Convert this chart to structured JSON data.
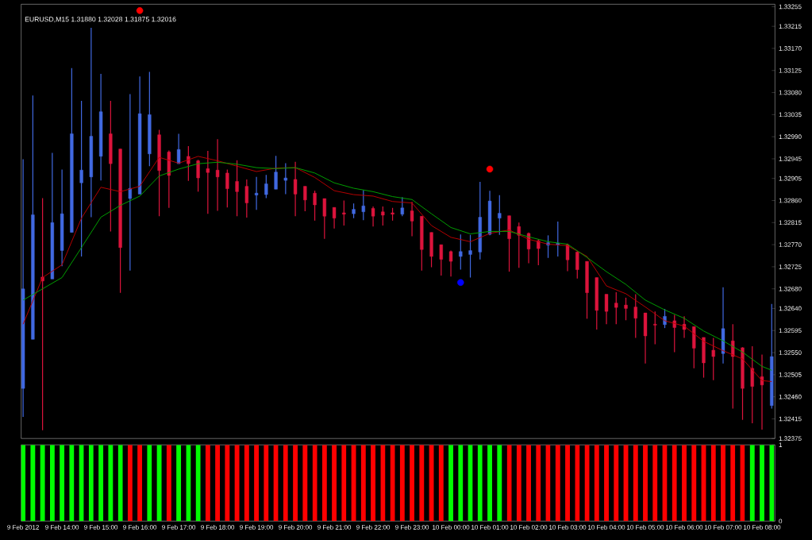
{
  "chart_data": [
    {
      "type": "candlestick",
      "title": "EURUSD,M15  1.31880 1.32028 1.31875 1.32016",
      "tick_labels": "y",
      "xlim": [
        "2012-02-09T12:57",
        "2012-02-10T08:20"
      ],
      "ylim": [
        1.32375,
        1.3326
      ],
      "yticks": [
        1.32375,
        1.32415,
        {
          "value": 1.3246,
          "label": "1.32460"
        },
        1.32505,
        {
          "value": 1.3255,
          "label": "1.32550"
        },
        1.32595,
        {
          "value": 1.3264,
          "label": "1.32640"
        },
        {
          "value": 1.3268,
          "label": "1.32680"
        },
        1.32725,
        {
          "value": 1.3277,
          "label": "1.32770"
        },
        1.32815,
        {
          "value": 1.3286,
          "label": "1.32860"
        },
        1.32905,
        1.32945,
        {
          "value": 1.3299,
          "label": "1.32990"
        },
        1.33035,
        {
          "value": 1.3308,
          "label": "1.33080"
        },
        1.33125,
        {
          "value": 1.3317,
          "label": "1.33170"
        },
        1.33215,
        1.33255
      ],
      "x": [
        "2012-02-09T13:00",
        "2012-02-09T13:15",
        "2012-02-09T13:30",
        "2012-02-09T13:45",
        "2012-02-09T14:00",
        "2012-02-09T14:15",
        "2012-02-09T14:30",
        "2012-02-09T14:45",
        "2012-02-09T15:00",
        "2012-02-09T15:15",
        "2012-02-09T15:30",
        "2012-02-09T15:45",
        "2012-02-09T16:00",
        "2012-02-09T16:15",
        "2012-02-09T16:30",
        "2012-02-09T16:45",
        "2012-02-09T17:00",
        "2012-02-09T17:15",
        "2012-02-09T17:30",
        "2012-02-09T17:45",
        "2012-02-09T18:00",
        "2012-02-09T18:15",
        "2012-02-09T18:30",
        "2012-02-09T18:45",
        "2012-02-09T19:00",
        "2012-02-09T19:15",
        "2012-02-09T19:30",
        "2012-02-09T19:45",
        "2012-02-09T20:00",
        "2012-02-09T20:15",
        "2012-02-09T20:30",
        "2012-02-09T20:45",
        "2012-02-09T21:00",
        "2012-02-09T21:15",
        "2012-02-09T21:30",
        "2012-02-09T21:45",
        "2012-02-09T22:00",
        "2012-02-09T22:15",
        "2012-02-09T22:30",
        "2012-02-09T22:45",
        "2012-02-09T23:00",
        "2012-02-09T23:15",
        "2012-02-09T23:30",
        "2012-02-09T23:45",
        "2012-02-10T00:00",
        "2012-02-10T00:15",
        "2012-02-10T00:30",
        "2012-02-10T00:45",
        "2012-02-10T01:00",
        "2012-02-10T01:15",
        "2012-02-10T01:30",
        "2012-02-10T01:45",
        "2012-02-10T02:00",
        "2012-02-10T02:15",
        "2012-02-10T02:30",
        "2012-02-10T02:45",
        "2012-02-10T03:00",
        "2012-02-10T03:15",
        "2012-02-10T03:30",
        "2012-02-10T03:45",
        "2012-02-10T04:00",
        "2012-02-10T04:15",
        "2012-02-10T04:30",
        "2012-02-10T04:45",
        "2012-02-10T05:00",
        "2012-02-10T05:15",
        "2012-02-10T05:30",
        "2012-02-10T05:45",
        "2012-02-10T06:00",
        "2012-02-10T06:15",
        "2012-02-10T06:30",
        "2012-02-10T06:45",
        "2012-02-10T07:00",
        "2012-02-10T07:15",
        "2012-02-10T07:30",
        "2012-02-10T07:45",
        "2012-02-10T08:00",
        "2012-02-10T08:15"
      ],
      "ohlc": [
        [
          1.32477,
          1.32944,
          1.32419,
          1.3268
        ],
        [
          1.32577,
          1.33074,
          1.32577,
          1.32831
        ],
        [
          1.32704,
          1.32865,
          1.32392,
          1.32696
        ],
        [
          1.327,
          1.32957,
          1.327,
          1.32815
        ],
        [
          1.32758,
          1.32923,
          1.32726,
          1.32833
        ],
        [
          1.32795,
          1.3313,
          1.32795,
          1.32996
        ],
        [
          1.32896,
          1.33063,
          1.32746,
          1.32922
        ],
        [
          1.32908,
          1.33212,
          1.32826,
          1.32991
        ],
        [
          1.3295,
          1.33118,
          1.32901,
          1.33041
        ],
        [
          1.32996,
          1.33063,
          1.32797,
          1.32935
        ],
        [
          1.32965,
          1.32965,
          1.32672,
          1.32764
        ],
        [
          1.32864,
          1.33077,
          1.32717,
          1.32885
        ],
        [
          1.32873,
          1.33113,
          1.32873,
          1.33037
        ],
        [
          1.32955,
          1.33122,
          1.3293,
          1.33035
        ],
        [
          1.32994,
          1.33004,
          1.32828,
          1.32921
        ],
        [
          1.32959,
          1.32962,
          1.32845,
          1.32911
        ],
        [
          1.32935,
          1.32996,
          1.32935,
          1.32964
        ],
        [
          1.3295,
          1.32971,
          1.329,
          1.32935
        ],
        [
          1.32941,
          1.32943,
          1.32878,
          1.32906
        ],
        [
          1.32925,
          1.32961,
          1.32833,
          1.32917
        ],
        [
          1.32922,
          1.32985,
          1.32839,
          1.32908
        ],
        [
          1.32916,
          1.32923,
          1.32846,
          1.32884
        ],
        [
          1.32899,
          1.32942,
          1.32828,
          1.32878
        ],
        [
          1.32889,
          1.32903,
          1.32825,
          1.32855
        ],
        [
          1.32871,
          1.32908,
          1.32841,
          1.32875
        ],
        [
          1.32872,
          1.32912,
          1.32865,
          1.32894
        ],
        [
          1.32883,
          1.32951,
          1.32883,
          1.32918
        ],
        [
          1.32901,
          1.32936,
          1.32873,
          1.32906
        ],
        [
          1.32903,
          1.32939,
          1.32828,
          1.32873
        ],
        [
          1.32889,
          1.32889,
          1.32838,
          1.32861
        ],
        [
          1.32875,
          1.3288,
          1.32819,
          1.32851
        ],
        [
          1.32864,
          1.32864,
          1.32782,
          1.32828
        ],
        [
          1.32846,
          1.32846,
          1.32803,
          1.32824
        ],
        [
          1.32835,
          1.3286,
          1.32809,
          1.32832
        ],
        [
          1.32833,
          1.32854,
          1.32824,
          1.32842
        ],
        [
          1.32837,
          1.32881,
          1.3282,
          1.32849
        ],
        [
          1.32844,
          1.32848,
          1.32807,
          1.32828
        ],
        [
          1.32837,
          1.32848,
          1.32809,
          1.3283
        ],
        [
          1.32835,
          1.32845,
          1.32819,
          1.32832
        ],
        [
          1.32832,
          1.32867,
          1.32828,
          1.32845
        ],
        [
          1.32839,
          1.32857,
          1.32787,
          1.32818
        ],
        [
          1.32828,
          1.32828,
          1.32717,
          1.3276
        ],
        [
          1.32795,
          1.32795,
          1.32724,
          1.32746
        ],
        [
          1.3277,
          1.3277,
          1.32707,
          1.3274
        ],
        [
          1.32756,
          1.32758,
          1.32705,
          1.32736
        ],
        [
          1.32746,
          1.32791,
          1.32719,
          1.32756
        ],
        [
          1.3275,
          1.3279,
          1.32703,
          1.32758
        ],
        [
          1.32755,
          1.32898,
          1.3274,
          1.32826
        ],
        [
          1.32791,
          1.3288,
          1.32789,
          1.32859
        ],
        [
          1.32824,
          1.32871,
          1.3279,
          1.32834
        ],
        [
          1.32829,
          1.32829,
          1.32715,
          1.32782
        ],
        [
          1.32807,
          1.32815,
          1.32723,
          1.32789
        ],
        [
          1.32793,
          1.32795,
          1.32732,
          1.32761
        ],
        [
          1.32778,
          1.32781,
          1.32728,
          1.32762
        ],
        [
          1.32769,
          1.32789,
          1.32743,
          1.32774
        ],
        [
          1.3277,
          1.32817,
          1.32746,
          1.32773
        ],
        [
          1.3277,
          1.32772,
          1.32716,
          1.32739
        ],
        [
          1.32755,
          1.32756,
          1.32701,
          1.32719
        ],
        [
          1.32736,
          1.32736,
          1.32619,
          1.32672
        ],
        [
          1.32703,
          1.32703,
          1.32597,
          1.32636
        ],
        [
          1.32669,
          1.32669,
          1.32608,
          1.32634
        ],
        [
          1.32651,
          1.32673,
          1.32608,
          1.32642
        ],
        [
          1.32647,
          1.32662,
          1.32616,
          1.3264
        ],
        [
          1.32643,
          1.32669,
          1.3258,
          1.3262
        ],
        [
          1.32631,
          1.32631,
          1.32528,
          1.32584
        ],
        [
          1.32608,
          1.32634,
          1.32567,
          1.32606
        ],
        [
          1.32607,
          1.32639,
          1.326,
          1.32624
        ],
        [
          1.32615,
          1.32627,
          1.32551,
          1.32601
        ],
        [
          1.32608,
          1.32624,
          1.3258,
          1.32597
        ],
        [
          1.32603,
          1.32603,
          1.32518,
          1.32559
        ],
        [
          1.32581,
          1.32581,
          1.32499,
          1.32529
        ],
        [
          1.32555,
          1.3258,
          1.32494,
          1.32542
        ],
        [
          1.32548,
          1.32683,
          1.32528,
          1.32599
        ],
        [
          1.32574,
          1.32608,
          1.32436,
          1.32542
        ],
        [
          1.3256,
          1.32561,
          1.32413,
          1.32477
        ],
        [
          1.32518,
          1.32563,
          1.32406,
          1.32481
        ],
        [
          1.32501,
          1.32546,
          1.32393,
          1.32484
        ],
        [
          1.32442,
          1.32649,
          1.32436,
          1.32542
        ]
      ],
      "colors": [
        "#4169e1",
        "#4169e1",
        "#dc143c",
        "#4169e1",
        "#4169e1",
        "#4169e1",
        "#4169e1",
        "#4169e1",
        "#4169e1",
        "#dc143c",
        "#dc143c",
        "#4169e1",
        "#4169e1",
        "#4169e1",
        "#dc143c",
        "#dc143c",
        "#4169e1",
        "#dc143c",
        "#dc143c",
        "#dc143c",
        "#dc143c",
        "#dc143c",
        "#dc143c",
        "#dc143c",
        "#4169e1",
        "#4169e1",
        "#4169e1",
        "#4169e1",
        "#dc143c",
        "#dc143c",
        "#dc143c",
        "#dc143c",
        "#dc143c",
        "#dc143c",
        "#4169e1",
        "#4169e1",
        "#dc143c",
        "#dc143c",
        "#dc143c",
        "#4169e1",
        "#dc143c",
        "#dc143c",
        "#dc143c",
        "#dc143c",
        "#dc143c",
        "#4169e1",
        "#4169e1",
        "#4169e1",
        "#4169e1",
        "#4169e1",
        "#dc143c",
        "#dc143c",
        "#dc143c",
        "#dc143c",
        "#4169e1",
        "#4169e1",
        "#dc143c",
        "#dc143c",
        "#dc143c",
        "#dc143c",
        "#dc143c",
        "#dc143c",
        "#dc143c",
        "#dc143c",
        "#dc143c",
        "#dc143c",
        "#4169e1",
        "#dc143c",
        "#dc143c",
        "#dc143c",
        "#dc143c",
        "#dc143c",
        "#4169e1",
        "#dc143c",
        "#dc143c",
        "#dc143c",
        "#dc143c",
        "#4169e1"
      ],
      "series": [
        {
          "type": "line",
          "color": "#c00000",
          "x": [
            "2012-02-09T13:00",
            "2012-02-09T13:30",
            "2012-02-09T14:00",
            "2012-02-09T14:30",
            "2012-02-09T15:00",
            "2012-02-09T15:30",
            "2012-02-09T16:00",
            "2012-02-09T16:30",
            "2012-02-09T17:00",
            "2012-02-09T17:30",
            "2012-02-09T18:00",
            "2012-02-09T18:30",
            "2012-02-09T19:00",
            "2012-02-09T19:30",
            "2012-02-09T20:00",
            "2012-02-09T20:30",
            "2012-02-09T21:00",
            "2012-02-09T21:30",
            "2012-02-09T22:00",
            "2012-02-09T22:30",
            "2012-02-09T23:00",
            "2012-02-09T23:30",
            "2012-02-10T00:00",
            "2012-02-10T00:30",
            "2012-02-10T01:00",
            "2012-02-10T01:30",
            "2012-02-10T02:00",
            "2012-02-10T02:30",
            "2012-02-10T03:00",
            "2012-02-10T03:30",
            "2012-02-10T04:00",
            "2012-02-10T04:30",
            "2012-02-10T05:00",
            "2012-02-10T05:30",
            "2012-02-10T06:00",
            "2012-02-10T06:30",
            "2012-02-10T07:00",
            "2012-02-10T07:30",
            "2012-02-10T08:00",
            "2012-02-10T08:15"
          ],
          "values": [
            1.32608,
            1.32703,
            1.32729,
            1.32824,
            1.32887,
            1.32878,
            1.32889,
            1.32948,
            1.32936,
            1.3295,
            1.32941,
            1.3293,
            1.32919,
            1.32926,
            1.32927,
            1.32907,
            1.3288,
            1.32872,
            1.32869,
            1.32858,
            1.32855,
            1.32809,
            1.32785,
            1.32776,
            1.32793,
            1.328,
            1.32781,
            1.32771,
            1.32768,
            1.32746,
            1.32686,
            1.3267,
            1.32643,
            1.32615,
            1.32604,
            1.32573,
            1.32554,
            1.32537,
            1.32493,
            1.32491
          ]
        },
        {
          "type": "line",
          "color": "#00a800",
          "x": [
            "2012-02-09T13:00",
            "2012-02-09T13:30",
            "2012-02-09T14:00",
            "2012-02-09T14:30",
            "2012-02-09T15:00",
            "2012-02-09T15:30",
            "2012-02-09T16:00",
            "2012-02-09T16:30",
            "2012-02-09T17:00",
            "2012-02-09T17:30",
            "2012-02-09T18:00",
            "2012-02-09T18:30",
            "2012-02-09T19:00",
            "2012-02-09T19:30",
            "2012-02-09T20:00",
            "2012-02-09T20:30",
            "2012-02-09T21:00",
            "2012-02-09T21:30",
            "2012-02-09T22:00",
            "2012-02-09T22:30",
            "2012-02-09T23:00",
            "2012-02-09T23:30",
            "2012-02-10T00:00",
            "2012-02-10T00:30",
            "2012-02-10T01:00",
            "2012-02-10T01:30",
            "2012-02-10T02:00",
            "2012-02-10T02:30",
            "2012-02-10T03:00",
            "2012-02-10T03:30",
            "2012-02-10T04:00",
            "2012-02-10T04:30",
            "2012-02-10T05:00",
            "2012-02-10T05:30",
            "2012-02-10T06:00",
            "2012-02-10T06:30",
            "2012-02-10T07:00",
            "2012-02-10T07:30",
            "2012-02-10T08:00",
            "2012-02-10T08:15"
          ],
          "values": [
            1.32657,
            1.3268,
            1.32703,
            1.32764,
            1.32826,
            1.3285,
            1.32869,
            1.3291,
            1.32924,
            1.32935,
            1.32938,
            1.32934,
            1.32927,
            1.32925,
            1.32927,
            1.32916,
            1.32896,
            1.32885,
            1.32878,
            1.32868,
            1.32862,
            1.32833,
            1.32805,
            1.32792,
            1.32797,
            1.32797,
            1.32786,
            1.32776,
            1.32771,
            1.32744,
            1.32715,
            1.32689,
            1.32657,
            1.32637,
            1.3262,
            1.32594,
            1.32574,
            1.32551,
            1.32522,
            1.32514
          ]
        },
        {
          "type": "scatter",
          "color": "#ff0000",
          "marker": "circle",
          "x": [
            "2012-02-09T16:00",
            "2012-02-10T01:00"
          ],
          "values": [
            1.33247,
            1.32924
          ]
        },
        {
          "type": "scatter",
          "color": "#0000ff",
          "marker": "circle",
          "x": [
            "2012-02-10T00:15"
          ],
          "values": [
            1.32693
          ]
        }
      ]
    },
    {
      "type": "bar",
      "xlim": [
        "2012-02-09T12:57",
        "2012-02-10T08:20"
      ],
      "xticks": [
        {
          "value": "2012-02-09T13:00",
          "label": "9 Feb 2012"
        },
        {
          "value": "2012-02-09T14:00",
          "label": "9 Feb 14:00"
        },
        {
          "value": "2012-02-09T15:00",
          "label": "9 Feb 15:00"
        },
        {
          "value": "2012-02-09T16:00",
          "label": "9 Feb 16:00"
        },
        {
          "value": "2012-02-09T17:00",
          "label": "9 Feb 17:00"
        },
        {
          "value": "2012-02-09T18:00",
          "label": "9 Feb 18:00"
        },
        {
          "value": "2012-02-09T19:00",
          "label": "9 Feb 19:00"
        },
        {
          "value": "2012-02-09T20:00",
          "label": "9 Feb 20:00"
        },
        {
          "value": "2012-02-09T21:00",
          "label": "9 Feb 21:00"
        },
        {
          "value": "2012-02-09T22:00",
          "label": "9 Feb 22:00"
        },
        {
          "value": "2012-02-09T23:00",
          "label": "9 Feb 23:00"
        },
        {
          "value": "2012-02-10T00:00",
          "label": "10 Feb 00:00"
        },
        {
          "value": "2012-02-10T01:00",
          "label": "10 Feb 01:00"
        },
        {
          "value": "2012-02-10T02:00",
          "label": "10 Feb 02:00"
        },
        {
          "value": "2012-02-10T03:00",
          "label": "10 Feb 03:00"
        },
        {
          "value": "2012-02-10T04:00",
          "label": "10 Feb 04:00"
        },
        {
          "value": "2012-02-10T05:00",
          "label": "10 Feb 05:00"
        },
        {
          "value": "2012-02-10T06:00",
          "label": "10 Feb 06:00"
        },
        {
          "value": "2012-02-10T07:00",
          "label": "10 Feb 07:00"
        },
        {
          "value": "2012-02-10T08:00",
          "label": "10 Feb 08:00"
        }
      ],
      "ylim": [
        0,
        1
      ],
      "yticks": [
        0,
        1
      ],
      "x": [
        "2012-02-09T13:00",
        "2012-02-09T13:15",
        "2012-02-09T13:30",
        "2012-02-09T13:45",
        "2012-02-09T14:00",
        "2012-02-09T14:15",
        "2012-02-09T14:30",
        "2012-02-09T14:45",
        "2012-02-09T15:00",
        "2012-02-09T15:15",
        "2012-02-09T15:30",
        "2012-02-09T15:45",
        "2012-02-09T16:00",
        "2012-02-09T16:15",
        "2012-02-09T16:30",
        "2012-02-09T16:45",
        "2012-02-09T17:00",
        "2012-02-09T17:15",
        "2012-02-09T17:30",
        "2012-02-09T17:45",
        "2012-02-09T18:00",
        "2012-02-09T18:15",
        "2012-02-09T18:30",
        "2012-02-09T18:45",
        "2012-02-09T19:00",
        "2012-02-09T19:15",
        "2012-02-09T19:30",
        "2012-02-09T19:45",
        "2012-02-09T20:00",
        "2012-02-09T20:15",
        "2012-02-09T20:30",
        "2012-02-09T20:45",
        "2012-02-09T21:00",
        "2012-02-09T21:15",
        "2012-02-09T21:30",
        "2012-02-09T21:45",
        "2012-02-09T22:00",
        "2012-02-09T22:15",
        "2012-02-09T22:30",
        "2012-02-09T22:45",
        "2012-02-09T23:00",
        "2012-02-09T23:15",
        "2012-02-09T23:30",
        "2012-02-09T23:45",
        "2012-02-10T00:00",
        "2012-02-10T00:15",
        "2012-02-10T00:30",
        "2012-02-10T00:45",
        "2012-02-10T01:00",
        "2012-02-10T01:15",
        "2012-02-10T01:30",
        "2012-02-10T01:45",
        "2012-02-10T02:00",
        "2012-02-10T02:15",
        "2012-02-10T02:30",
        "2012-02-10T02:45",
        "2012-02-10T03:00",
        "2012-02-10T03:15",
        "2012-02-10T03:30",
        "2012-02-10T03:45",
        "2012-02-10T04:00",
        "2012-02-10T04:15",
        "2012-02-10T04:30",
        "2012-02-10T04:45",
        "2012-02-10T05:00",
        "2012-02-10T05:15",
        "2012-02-10T05:30",
        "2012-02-10T05:45",
        "2012-02-10T06:00",
        "2012-02-10T06:15",
        "2012-02-10T06:30",
        "2012-02-10T06:45",
        "2012-02-10T07:00",
        "2012-02-10T07:15",
        "2012-02-10T07:30",
        "2012-02-10T07:45",
        "2012-02-10T08:00",
        "2012-02-10T08:15"
      ],
      "values": [
        1,
        1,
        1,
        1,
        1,
        1,
        1,
        1,
        1,
        1,
        1,
        1,
        1,
        1,
        1,
        1,
        1,
        1,
        1,
        1,
        1,
        1,
        1,
        1,
        1,
        1,
        1,
        1,
        1,
        1,
        1,
        1,
        1,
        1,
        1,
        1,
        1,
        1,
        1,
        1,
        1,
        1,
        1,
        1,
        1,
        1,
        1,
        1,
        1,
        1,
        1,
        1,
        1,
        1,
        1,
        1,
        1,
        1,
        1,
        1,
        1,
        1,
        1,
        1,
        1,
        1,
        1,
        1,
        1,
        1,
        1,
        1,
        1,
        1,
        1,
        1,
        1,
        1
      ],
      "colors": [
        "#00ff00",
        "#00ff00",
        "#00ff00",
        "#00ff00",
        "#00ff00",
        "#00ff00",
        "#00ff00",
        "#00ff00",
        "#00ff00",
        "#00ff00",
        "#00ff00",
        "#ff0000",
        "#ff0000",
        "#00ff00",
        "#00ff00",
        "#ff0000",
        "#00ff00",
        "#00ff00",
        "#00ff00",
        "#ff0000",
        "#ff0000",
        "#ff0000",
        "#ff0000",
        "#ff0000",
        "#ff0000",
        "#ff0000",
        "#ff0000",
        "#ff0000",
        "#ff0000",
        "#ff0000",
        "#ff0000",
        "#ff0000",
        "#ff0000",
        "#ff0000",
        "#ff0000",
        "#ff0000",
        "#ff0000",
        "#ff0000",
        "#ff0000",
        "#ff0000",
        "#ff0000",
        "#ff0000",
        "#ff0000",
        "#ff0000",
        "#00ff00",
        "#00ff00",
        "#00ff00",
        "#00ff00",
        "#00ff00",
        "#00ff00",
        "#ff0000",
        "#ff0000",
        "#ff0000",
        "#ff0000",
        "#ff0000",
        "#ff0000",
        "#ff0000",
        "#ff0000",
        "#ff0000",
        "#ff0000",
        "#ff0000",
        "#ff0000",
        "#ff0000",
        "#ff0000",
        "#ff0000",
        "#ff0000",
        "#ff0000",
        "#ff0000",
        "#ff0000",
        "#ff0000",
        "#ff0000",
        "#ff0000",
        "#ff0000",
        "#ff0000",
        "#ff0000",
        "#00ff00",
        "#00ff00",
        "#00ff00"
      ]
    }
  ]
}
